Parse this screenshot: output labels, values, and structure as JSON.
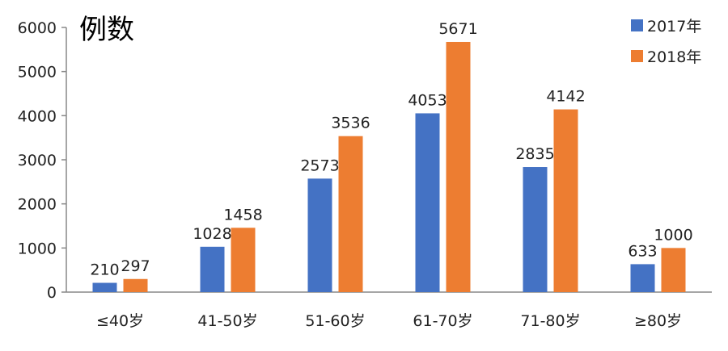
{
  "chart_data": {
    "type": "bar",
    "title": "例数",
    "categories": [
      "≤40岁",
      "41-50岁",
      "51-60岁",
      "61-70岁",
      "71-80岁",
      "≥80岁"
    ],
    "series": [
      {
        "name": "2017年",
        "color": "#4472C4",
        "values": [
          210,
          1028,
          2573,
          4053,
          2835,
          633
        ]
      },
      {
        "name": "2018年",
        "color": "#ED7D31",
        "values": [
          297,
          1458,
          3536,
          5671,
          4142,
          1000
        ]
      }
    ],
    "y_ticks": [
      "0",
      "1000",
      "2000",
      "3000",
      "4000",
      "5000",
      "6000"
    ],
    "ylim": [
      0,
      6000
    ],
    "grid": false,
    "legend_position": "top-right"
  }
}
